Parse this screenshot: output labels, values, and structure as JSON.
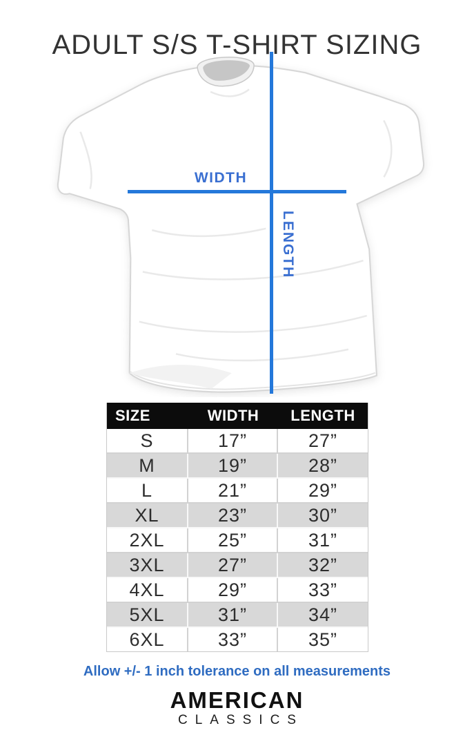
{
  "title": "ADULT S/S T-SHIRT SIZING",
  "diagram": {
    "width_label": "WIDTH",
    "length_label": "LENGTH"
  },
  "table": {
    "headers": [
      "SIZE",
      "WIDTH",
      "LENGTH"
    ],
    "rows": [
      {
        "size": "S",
        "width": "17”",
        "length": "27”"
      },
      {
        "size": "M",
        "width": "19”",
        "length": "28”"
      },
      {
        "size": "L",
        "width": "21”",
        "length": "29”"
      },
      {
        "size": "XL",
        "width": "23”",
        "length": "30”"
      },
      {
        "size": "2XL",
        "width": "25”",
        "length": "31”"
      },
      {
        "size": "3XL",
        "width": "27”",
        "length": "32”"
      },
      {
        "size": "4XL",
        "width": "29”",
        "length": "33”"
      },
      {
        "size": "5XL",
        "width": "31”",
        "length": "34”"
      },
      {
        "size": "6XL",
        "width": "33”",
        "length": "35”"
      }
    ]
  },
  "footer": {
    "tolerance_note": "Allow +/- 1 inch tolerance on all measurements",
    "brand_line1": "AMERICAN",
    "brand_line2": "CLASSICS"
  },
  "colors": {
    "measure_line_blue": "#2478da",
    "measure_label_blue": "#3a6fd1",
    "note_blue": "#2f6cc1",
    "table_header_bg": "#0c0c0c",
    "table_alt_row_gray": "#d8d8d8"
  }
}
